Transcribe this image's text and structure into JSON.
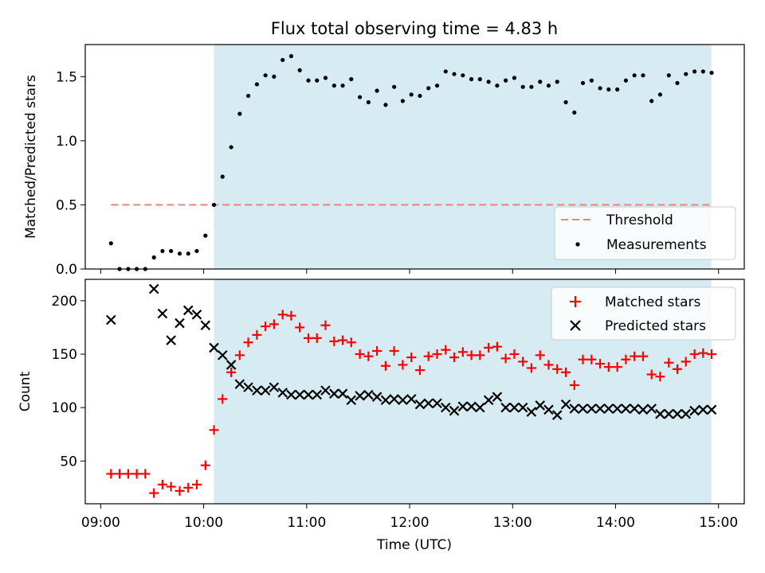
{
  "title": "Flux total observing time = 4.83 h",
  "x_ticks": [
    "09:00",
    "10:00",
    "11:00",
    "12:00",
    "13:00",
    "14:00",
    "15:00"
  ],
  "xlabel": "Time (UTC)",
  "colors": {
    "shade": "#add8e6",
    "threshold": "#f08080",
    "matched": "#ff0000",
    "predicted": "#000000",
    "measurement": "#000000"
  },
  "chart_data": [
    {
      "type": "scatter",
      "ylabel": "Matched/Predicted stars",
      "y_ticks": [
        "0.0",
        "0.5",
        "1.0",
        "1.5"
      ],
      "ylim": [
        0,
        1.75
      ],
      "xlim_hours": [
        8.85,
        15.25
      ],
      "shaded_span_hours": [
        10.1,
        14.93
      ],
      "threshold": {
        "value": 0.5,
        "from_hour": 9.1,
        "to_hour": 14.93
      },
      "legend": {
        "placement": "lower right",
        "entries": [
          "Threshold",
          "Measurements"
        ]
      },
      "series": [
        {
          "name": "Measurements",
          "x_hours": [
            9.1,
            9.183,
            9.267,
            9.35,
            9.433,
            9.517,
            9.6,
            9.683,
            9.767,
            9.85,
            9.933,
            10.017,
            10.1,
            10.183,
            10.267,
            10.35,
            10.433,
            10.517,
            10.6,
            10.683,
            10.767,
            10.85,
            10.933,
            11.017,
            11.1,
            11.183,
            11.267,
            11.35,
            11.433,
            11.517,
            11.6,
            11.683,
            11.767,
            11.85,
            11.933,
            12.017,
            12.1,
            12.183,
            12.267,
            12.35,
            12.433,
            12.517,
            12.6,
            12.683,
            12.767,
            12.85,
            12.933,
            13.017,
            13.1,
            13.183,
            13.267,
            13.35,
            13.433,
            13.517,
            13.6,
            13.683,
            13.767,
            13.85,
            13.933,
            14.017,
            14.1,
            14.183,
            14.267,
            14.35,
            14.433,
            14.517,
            14.6,
            14.683,
            14.767,
            14.85,
            14.933
          ],
          "y": [
            0.2,
            0.0,
            0.0,
            0.0,
            0.0,
            0.09,
            0.14,
            0.14,
            0.12,
            0.12,
            0.14,
            0.26,
            0.5,
            0.72,
            0.95,
            1.21,
            1.35,
            1.44,
            1.51,
            1.5,
            1.63,
            1.66,
            1.55,
            1.47,
            1.47,
            1.49,
            1.43,
            1.43,
            1.48,
            1.34,
            1.3,
            1.39,
            1.28,
            1.42,
            1.31,
            1.36,
            1.35,
            1.41,
            1.43,
            1.54,
            1.52,
            1.51,
            1.48,
            1.48,
            1.46,
            1.43,
            1.47,
            1.49,
            1.42,
            1.42,
            1.46,
            1.43,
            1.46,
            1.3,
            1.22,
            1.45,
            1.47,
            1.41,
            1.4,
            1.4,
            1.47,
            1.51,
            1.51,
            1.31,
            1.36,
            1.51,
            1.45,
            1.52,
            1.54,
            1.54,
            1.53
          ]
        }
      ]
    },
    {
      "type": "scatter",
      "ylabel": "Count",
      "y_ticks": [
        "50",
        "100",
        "150",
        "200"
      ],
      "ylim": [
        10,
        220
      ],
      "xlim_hours": [
        8.85,
        15.25
      ],
      "shaded_span_hours": [
        10.1,
        14.93
      ],
      "legend": {
        "placement": "upper right",
        "entries": [
          "Matched stars",
          "Predicted stars"
        ]
      },
      "series": [
        {
          "name": "Matched stars",
          "marker": "plus",
          "x_hours": [
            9.1,
            9.183,
            9.267,
            9.35,
            9.433,
            9.517,
            9.6,
            9.683,
            9.767,
            9.85,
            9.933,
            10.017,
            10.1,
            10.183,
            10.267,
            10.35,
            10.433,
            10.517,
            10.6,
            10.683,
            10.767,
            10.85,
            10.933,
            11.017,
            11.1,
            11.183,
            11.267,
            11.35,
            11.433,
            11.517,
            11.6,
            11.683,
            11.767,
            11.85,
            11.933,
            12.017,
            12.1,
            12.183,
            12.267,
            12.35,
            12.433,
            12.517,
            12.6,
            12.683,
            12.767,
            12.85,
            12.933,
            13.017,
            13.1,
            13.183,
            13.267,
            13.35,
            13.433,
            13.517,
            13.6,
            13.683,
            13.767,
            13.85,
            13.933,
            14.017,
            14.1,
            14.183,
            14.267,
            14.35,
            14.433,
            14.517,
            14.6,
            14.683,
            14.767,
            14.85,
            14.933
          ],
          "y": [
            38,
            38,
            38,
            38,
            38,
            20,
            28,
            26,
            22,
            25,
            28,
            46,
            79,
            108,
            133,
            149,
            161,
            168,
            176,
            178,
            187,
            186,
            175,
            165,
            165,
            177,
            162,
            163,
            161,
            150,
            148,
            153,
            139,
            153,
            140,
            147,
            135,
            148,
            150,
            154,
            147,
            152,
            149,
            149,
            156,
            157,
            146,
            150,
            143,
            137,
            149,
            140,
            136,
            133,
            121,
            145,
            145,
            141,
            138,
            138,
            145,
            148,
            148,
            131,
            129,
            142,
            136,
            143,
            150,
            151,
            150
          ]
        },
        {
          "name": "Predicted stars",
          "marker": "x",
          "x_hours": [
            9.1,
            9.517,
            9.6,
            9.683,
            9.767,
            9.85,
            9.933,
            10.017,
            10.1,
            10.183,
            10.267,
            10.35,
            10.433,
            10.517,
            10.6,
            10.683,
            10.767,
            10.85,
            10.933,
            11.017,
            11.1,
            11.183,
            11.267,
            11.35,
            11.433,
            11.517,
            11.6,
            11.683,
            11.767,
            11.85,
            11.933,
            12.017,
            12.1,
            12.183,
            12.267,
            12.35,
            12.433,
            12.517,
            12.6,
            12.683,
            12.767,
            12.85,
            12.933,
            13.017,
            13.1,
            13.183,
            13.267,
            13.35,
            13.433,
            13.517,
            13.6,
            13.683,
            13.767,
            13.85,
            13.933,
            14.017,
            14.1,
            14.183,
            14.267,
            14.35,
            14.433,
            14.517,
            14.6,
            14.683,
            14.767,
            14.85,
            14.933
          ],
          "y": [
            182,
            211,
            188,
            163,
            179,
            191,
            187,
            177,
            156,
            149,
            140,
            122,
            119,
            116,
            116,
            119,
            114,
            112,
            112,
            112,
            112,
            116,
            113,
            113,
            107,
            111,
            112,
            110,
            107,
            108,
            107,
            108,
            103,
            104,
            104,
            100,
            97,
            101,
            101,
            100,
            107,
            110,
            100,
            100,
            100,
            96,
            102,
            98,
            93,
            103,
            99,
            99,
            99,
            99,
            99,
            99,
            99,
            99,
            98,
            99,
            94,
            94,
            94,
            94,
            97,
            98,
            98
          ]
        }
      ]
    }
  ]
}
